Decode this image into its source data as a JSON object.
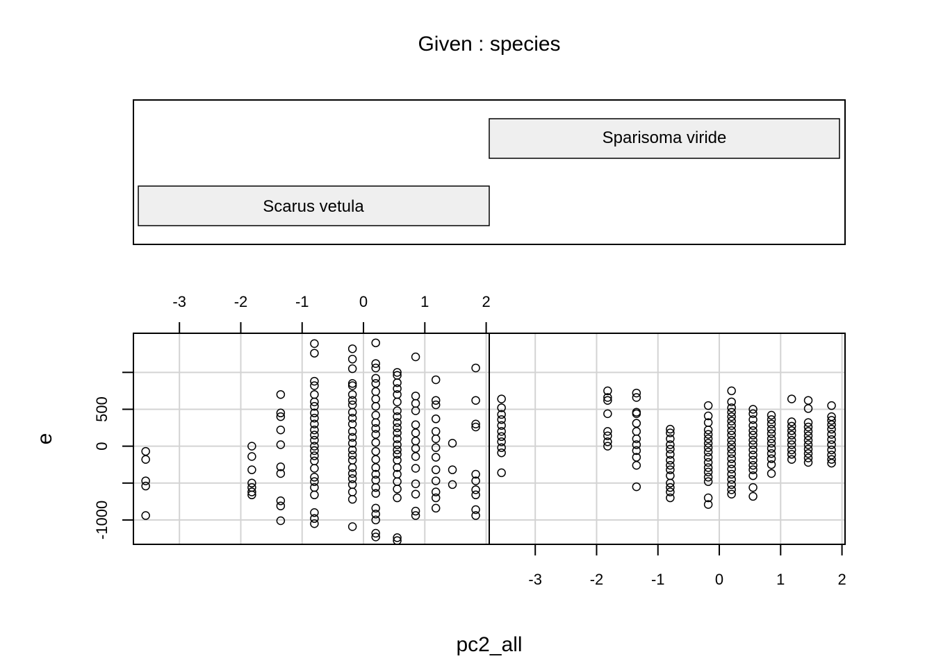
{
  "chart_data": {
    "type": "scatter",
    "title": "Given : species",
    "xlabel": "pc2_all",
    "ylabel": "e",
    "xlim": [
      -3.75,
      2.05
    ],
    "ylim": [
      -1330,
      1530
    ],
    "x_ticks": [
      -3,
      -2,
      -1,
      0,
      1,
      2
    ],
    "y_ticks": [
      -1000,
      -500,
      0,
      500,
      1000
    ],
    "y_tick_labels": [
      "-1000",
      "",
      "0",
      "500",
      ""
    ],
    "grid": true,
    "panels": [
      {
        "name": "Scarus vetula",
        "points": [
          [
            -3.55,
            -70
          ],
          [
            -3.55,
            -180
          ],
          [
            -3.55,
            -470
          ],
          [
            -3.55,
            -540
          ],
          [
            -3.55,
            -940
          ],
          [
            -1.82,
            0
          ],
          [
            -1.82,
            -140
          ],
          [
            -1.82,
            -320
          ],
          [
            -1.82,
            -500
          ],
          [
            -1.82,
            -560
          ],
          [
            -1.82,
            -620
          ],
          [
            -1.82,
            -660
          ],
          [
            -1.35,
            700
          ],
          [
            -1.35,
            450
          ],
          [
            -1.35,
            400
          ],
          [
            -1.35,
            220
          ],
          [
            -1.35,
            20
          ],
          [
            -1.35,
            -280
          ],
          [
            -1.35,
            -370
          ],
          [
            -1.35,
            -740
          ],
          [
            -1.35,
            -810
          ],
          [
            -1.35,
            -1010
          ],
          [
            -0.8,
            1390
          ],
          [
            -0.8,
            1260
          ],
          [
            -0.8,
            880
          ],
          [
            -0.8,
            820
          ],
          [
            -0.8,
            700
          ],
          [
            -0.8,
            600
          ],
          [
            -0.8,
            540
          ],
          [
            -0.8,
            450
          ],
          [
            -0.8,
            380
          ],
          [
            -0.8,
            300
          ],
          [
            -0.8,
            220
          ],
          [
            -0.8,
            150
          ],
          [
            -0.8,
            80
          ],
          [
            -0.8,
            0
          ],
          [
            -0.8,
            -60
          ],
          [
            -0.8,
            -130
          ],
          [
            -0.8,
            -200
          ],
          [
            -0.8,
            -300
          ],
          [
            -0.8,
            -420
          ],
          [
            -0.8,
            -480
          ],
          [
            -0.8,
            -560
          ],
          [
            -0.8,
            -660
          ],
          [
            -0.8,
            -900
          ],
          [
            -0.8,
            -980
          ],
          [
            -0.8,
            -1050
          ],
          [
            -0.18,
            1320
          ],
          [
            -0.18,
            1180
          ],
          [
            -0.18,
            1050
          ],
          [
            -0.18,
            850
          ],
          [
            -0.18,
            820
          ],
          [
            -0.18,
            700
          ],
          [
            -0.18,
            620
          ],
          [
            -0.18,
            560
          ],
          [
            -0.18,
            460
          ],
          [
            -0.18,
            380
          ],
          [
            -0.18,
            300
          ],
          [
            -0.18,
            200
          ],
          [
            -0.18,
            120
          ],
          [
            -0.18,
            40
          ],
          [
            -0.18,
            -50
          ],
          [
            -0.18,
            -120
          ],
          [
            -0.18,
            -190
          ],
          [
            -0.18,
            -290
          ],
          [
            -0.18,
            -370
          ],
          [
            -0.18,
            -440
          ],
          [
            -0.18,
            -520
          ],
          [
            -0.18,
            -620
          ],
          [
            -0.18,
            -720
          ],
          [
            -0.18,
            -1090
          ],
          [
            0.2,
            1400
          ],
          [
            0.2,
            1120
          ],
          [
            0.2,
            1060
          ],
          [
            0.2,
            920
          ],
          [
            0.2,
            850
          ],
          [
            0.2,
            740
          ],
          [
            0.2,
            640
          ],
          [
            0.2,
            540
          ],
          [
            0.2,
            420
          ],
          [
            0.2,
            320
          ],
          [
            0.2,
            240
          ],
          [
            0.2,
            160
          ],
          [
            0.2,
            50
          ],
          [
            0.2,
            -70
          ],
          [
            0.2,
            -180
          ],
          [
            0.2,
            -290
          ],
          [
            0.2,
            -380
          ],
          [
            0.2,
            -460
          ],
          [
            0.2,
            -560
          ],
          [
            0.2,
            -640
          ],
          [
            0.2,
            -840
          ],
          [
            0.2,
            -920
          ],
          [
            0.2,
            -1000
          ],
          [
            0.2,
            -1180
          ],
          [
            0.2,
            -1230
          ],
          [
            0.55,
            1000
          ],
          [
            0.55,
            960
          ],
          [
            0.55,
            860
          ],
          [
            0.55,
            780
          ],
          [
            0.55,
            700
          ],
          [
            0.55,
            600
          ],
          [
            0.55,
            480
          ],
          [
            0.55,
            400
          ],
          [
            0.55,
            320
          ],
          [
            0.55,
            250
          ],
          [
            0.55,
            180
          ],
          [
            0.55,
            100
          ],
          [
            0.55,
            20
          ],
          [
            0.55,
            -50
          ],
          [
            0.55,
            -110
          ],
          [
            0.55,
            -190
          ],
          [
            0.55,
            -290
          ],
          [
            0.55,
            -380
          ],
          [
            0.55,
            -480
          ],
          [
            0.55,
            -580
          ],
          [
            0.55,
            -700
          ],
          [
            0.55,
            -1240
          ],
          [
            0.55,
            -1280
          ],
          [
            0.85,
            1210
          ],
          [
            0.85,
            680
          ],
          [
            0.85,
            580
          ],
          [
            0.85,
            480
          ],
          [
            0.85,
            290
          ],
          [
            0.85,
            180
          ],
          [
            0.85,
            70
          ],
          [
            0.85,
            -30
          ],
          [
            0.85,
            -140
          ],
          [
            0.85,
            -300
          ],
          [
            0.85,
            -510
          ],
          [
            0.85,
            -650
          ],
          [
            0.85,
            -880
          ],
          [
            0.85,
            -940
          ],
          [
            1.18,
            900
          ],
          [
            1.18,
            620
          ],
          [
            1.18,
            560
          ],
          [
            1.18,
            370
          ],
          [
            1.18,
            200
          ],
          [
            1.18,
            100
          ],
          [
            1.18,
            -20
          ],
          [
            1.18,
            -150
          ],
          [
            1.18,
            -320
          ],
          [
            1.18,
            -470
          ],
          [
            1.18,
            -620
          ],
          [
            1.18,
            -700
          ],
          [
            1.18,
            -840
          ],
          [
            1.45,
            40
          ],
          [
            1.45,
            -320
          ],
          [
            1.45,
            -520
          ],
          [
            1.83,
            1060
          ],
          [
            1.83,
            620
          ],
          [
            1.83,
            300
          ],
          [
            1.83,
            260
          ],
          [
            1.83,
            -380
          ],
          [
            1.83,
            -470
          ],
          [
            1.83,
            -590
          ],
          [
            1.83,
            -660
          ],
          [
            1.83,
            -860
          ],
          [
            1.83,
            -940
          ]
        ]
      },
      {
        "name": "Sparisoma viride",
        "points": [
          [
            -3.55,
            640
          ],
          [
            -3.55,
            520
          ],
          [
            -3.55,
            430
          ],
          [
            -3.55,
            360
          ],
          [
            -3.55,
            280
          ],
          [
            -3.55,
            200
          ],
          [
            -3.55,
            130
          ],
          [
            -3.55,
            60
          ],
          [
            -3.55,
            -20
          ],
          [
            -3.55,
            -90
          ],
          [
            -3.55,
            -360
          ],
          [
            -1.82,
            750
          ],
          [
            -1.82,
            660
          ],
          [
            -1.82,
            620
          ],
          [
            -1.82,
            440
          ],
          [
            -1.82,
            200
          ],
          [
            -1.82,
            140
          ],
          [
            -1.82,
            60
          ],
          [
            -1.82,
            0
          ],
          [
            -1.35,
            720
          ],
          [
            -1.35,
            660
          ],
          [
            -1.35,
            460
          ],
          [
            -1.35,
            440
          ],
          [
            -1.35,
            310
          ],
          [
            -1.35,
            200
          ],
          [
            -1.35,
            100
          ],
          [
            -1.35,
            20
          ],
          [
            -1.35,
            -60
          ],
          [
            -1.35,
            -150
          ],
          [
            -1.35,
            -260
          ],
          [
            -1.35,
            -550
          ],
          [
            -0.8,
            230
          ],
          [
            -0.8,
            180
          ],
          [
            -0.8,
            100
          ],
          [
            -0.8,
            20
          ],
          [
            -0.8,
            -40
          ],
          [
            -0.8,
            -110
          ],
          [
            -0.8,
            -190
          ],
          [
            -0.8,
            -260
          ],
          [
            -0.8,
            -320
          ],
          [
            -0.8,
            -400
          ],
          [
            -0.8,
            -500
          ],
          [
            -0.8,
            -560
          ],
          [
            -0.8,
            -620
          ],
          [
            -0.8,
            -700
          ],
          [
            -0.18,
            550
          ],
          [
            -0.18,
            410
          ],
          [
            -0.18,
            320
          ],
          [
            -0.18,
            220
          ],
          [
            -0.18,
            160
          ],
          [
            -0.18,
            100
          ],
          [
            -0.18,
            40
          ],
          [
            -0.18,
            -20
          ],
          [
            -0.18,
            -80
          ],
          [
            -0.18,
            -150
          ],
          [
            -0.18,
            -220
          ],
          [
            -0.18,
            -290
          ],
          [
            -0.18,
            -350
          ],
          [
            -0.18,
            -420
          ],
          [
            -0.18,
            -480
          ],
          [
            -0.18,
            -700
          ],
          [
            -0.18,
            -790
          ],
          [
            0.2,
            750
          ],
          [
            0.2,
            600
          ],
          [
            0.2,
            520
          ],
          [
            0.2,
            460
          ],
          [
            0.2,
            400
          ],
          [
            0.2,
            340
          ],
          [
            0.2,
            280
          ],
          [
            0.2,
            210
          ],
          [
            0.2,
            150
          ],
          [
            0.2,
            80
          ],
          [
            0.2,
            20
          ],
          [
            0.2,
            -40
          ],
          [
            0.2,
            -100
          ],
          [
            0.2,
            -170
          ],
          [
            0.2,
            -240
          ],
          [
            0.2,
            -310
          ],
          [
            0.2,
            -380
          ],
          [
            0.2,
            -450
          ],
          [
            0.2,
            -520
          ],
          [
            0.2,
            -590
          ],
          [
            0.2,
            -650
          ],
          [
            0.55,
            500
          ],
          [
            0.55,
            440
          ],
          [
            0.55,
            360
          ],
          [
            0.55,
            280
          ],
          [
            0.55,
            210
          ],
          [
            0.55,
            150
          ],
          [
            0.55,
            80
          ],
          [
            0.55,
            20
          ],
          [
            0.55,
            -50
          ],
          [
            0.55,
            -120
          ],
          [
            0.55,
            -190
          ],
          [
            0.55,
            -260
          ],
          [
            0.55,
            -320
          ],
          [
            0.55,
            -400
          ],
          [
            0.55,
            -560
          ],
          [
            0.55,
            -680
          ],
          [
            0.85,
            420
          ],
          [
            0.85,
            360
          ],
          [
            0.85,
            300
          ],
          [
            0.85,
            230
          ],
          [
            0.85,
            170
          ],
          [
            0.85,
            100
          ],
          [
            0.85,
            40
          ],
          [
            0.85,
            -30
          ],
          [
            0.85,
            -100
          ],
          [
            0.85,
            -170
          ],
          [
            0.85,
            -250
          ],
          [
            0.85,
            -370
          ],
          [
            1.18,
            640
          ],
          [
            1.18,
            330
          ],
          [
            1.18,
            270
          ],
          [
            1.18,
            210
          ],
          [
            1.18,
            150
          ],
          [
            1.18,
            80
          ],
          [
            1.18,
            20
          ],
          [
            1.18,
            -50
          ],
          [
            1.18,
            -110
          ],
          [
            1.18,
            -180
          ],
          [
            1.45,
            620
          ],
          [
            1.45,
            510
          ],
          [
            1.45,
            320
          ],
          [
            1.45,
            260
          ],
          [
            1.45,
            200
          ],
          [
            1.45,
            140
          ],
          [
            1.45,
            80
          ],
          [
            1.45,
            20
          ],
          [
            1.45,
            -40
          ],
          [
            1.45,
            -100
          ],
          [
            1.45,
            -160
          ],
          [
            1.45,
            -220
          ],
          [
            1.83,
            550
          ],
          [
            1.83,
            400
          ],
          [
            1.83,
            350
          ],
          [
            1.83,
            290
          ],
          [
            1.83,
            230
          ],
          [
            1.83,
            160
          ],
          [
            1.83,
            90
          ],
          [
            1.83,
            20
          ],
          [
            1.83,
            -50
          ],
          [
            1.83,
            -120
          ],
          [
            1.83,
            -180
          ],
          [
            1.83,
            -230
          ]
        ]
      }
    ]
  }
}
